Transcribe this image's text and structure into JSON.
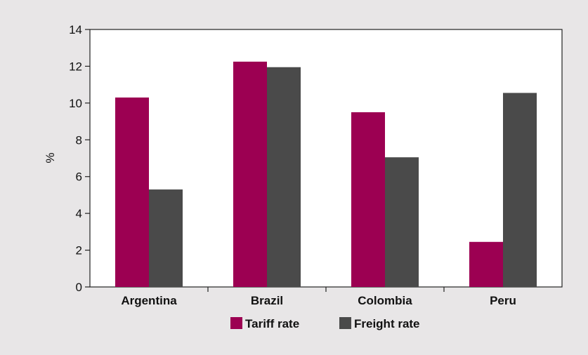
{
  "chart_data": {
    "type": "bar",
    "categories": [
      "Argentina",
      "Brazil",
      "Colombia",
      "Peru"
    ],
    "series": [
      {
        "name": "Tariff rate",
        "values": [
          10.3,
          12.25,
          9.5,
          2.45
        ],
        "color": "#9c0052"
      },
      {
        "name": "Freight rate",
        "values": [
          5.3,
          11.95,
          7.05,
          10.55
        ],
        "color": "#4a4a4a"
      }
    ],
    "title": "",
    "xlabel": "",
    "ylabel": "%",
    "ylim": [
      0,
      14
    ],
    "yticks": [
      "0",
      "2",
      "4",
      "6",
      "8",
      "10",
      "12",
      "14"
    ],
    "grid": false,
    "legend_position": "bottom"
  }
}
